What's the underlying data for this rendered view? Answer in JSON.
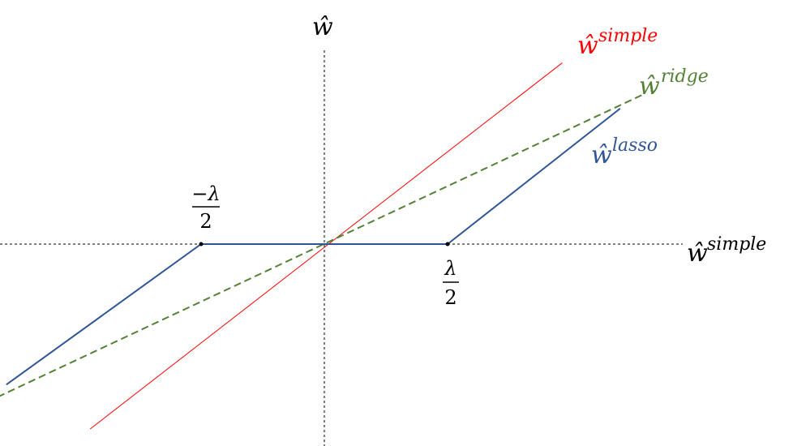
{
  "colors": {
    "axis": "#000000",
    "simple": "#ff0000",
    "ridge": "#538135",
    "lasso": "#2f5597",
    "point": "#000000"
  },
  "labels": {
    "y_axis": "ŵ",
    "x_axis_base": "ŵ",
    "x_axis_sup": "simple",
    "simple_base": "ŵ",
    "simple_sup": "simple",
    "ridge_base": "ŵ",
    "ridge_sup": "ridge",
    "lasso_base": "ŵ",
    "lasso_sup": "lasso",
    "neg_threshold_num": "−λ",
    "neg_threshold_den": "2",
    "pos_threshold_num": "λ",
    "pos_threshold_den": "2"
  },
  "chart_data": {
    "type": "line",
    "xlabel": "ŵ^simple",
    "ylabel": "ŵ",
    "x_unit": "λ/2",
    "xlim": [
      -2.65,
      2.3
    ],
    "ylim": [
      -1.6,
      1.5
    ],
    "series": [
      {
        "name": "ŵ^simple",
        "style": "solid",
        "x": [
          -1.9,
          1.93
        ],
        "y": [
          -1.5,
          1.47
        ]
      },
      {
        "name": "ŵ^ridge",
        "style": "dashed",
        "x": [
          -2.65,
          2.6
        ],
        "y": [
          -1.24,
          1.22
        ]
      },
      {
        "name": "ŵ^lasso",
        "style": "solid",
        "x": [
          -2.58,
          -1.0,
          1.0,
          2.4
        ],
        "y": [
          -1.14,
          0.0,
          0.0,
          1.1
        ]
      }
    ],
    "threshold_points": [
      -1.0,
      1.0
    ]
  }
}
